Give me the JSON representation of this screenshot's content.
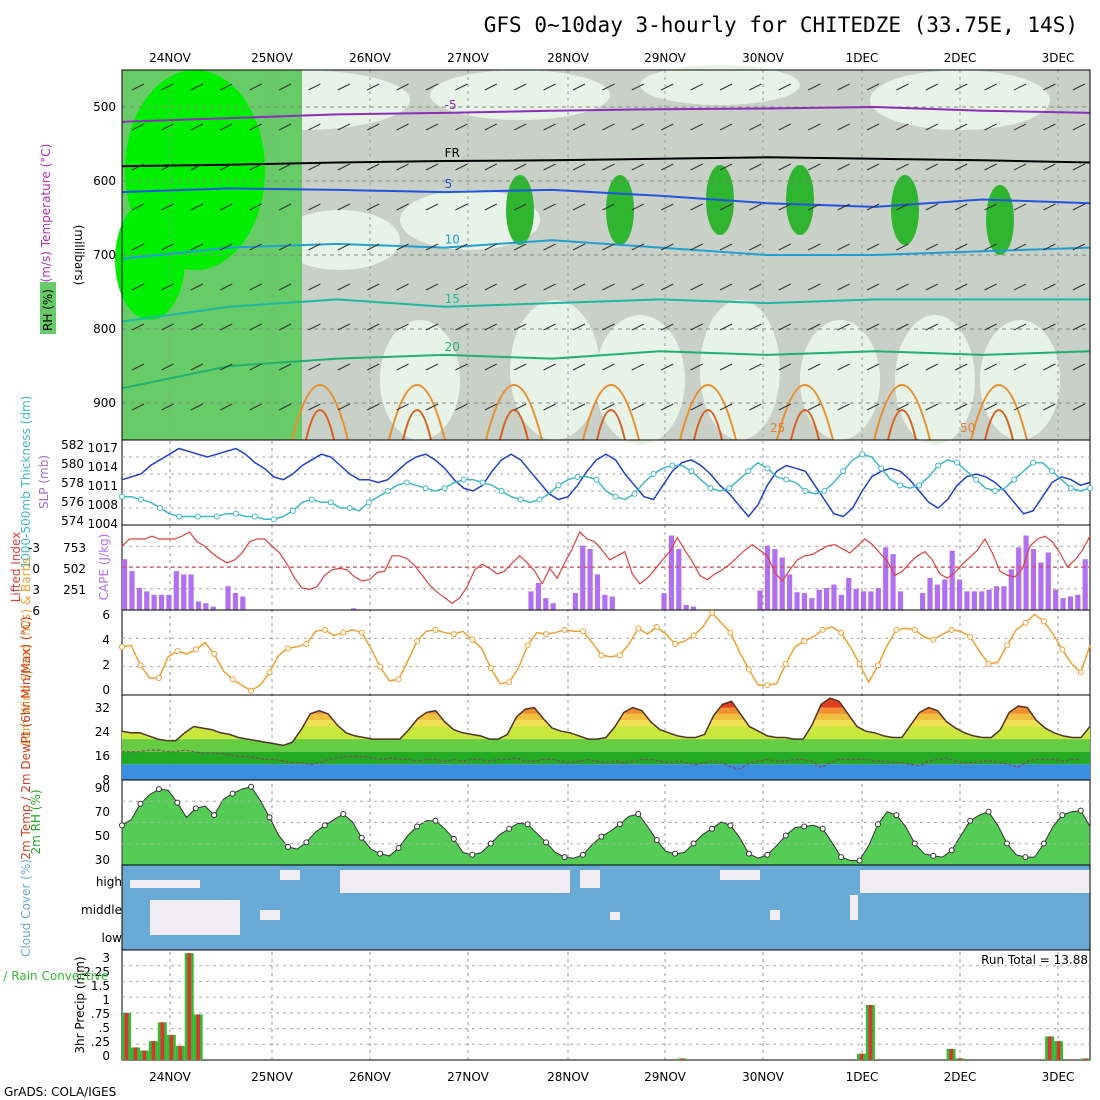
{
  "title": "GFS 0~10day 3-hourly for CHITEDZE (33.75E, 14S)",
  "footer": "GrADS: COLA/IGES",
  "colors": {
    "rh_dark": "#2fb52f",
    "rh_bright": "#00ee00",
    "rh_mid": "#67cc67",
    "rh_light": "#e6f3e6",
    "rh_grey": "#c8d0c8",
    "slp": "#1f3fcf",
    "thickness": "#3fb8c8",
    "li": "#e04040",
    "cape": "#b070f0",
    "wind_speed": "#f0a030",
    "temp_fill": "#e87020",
    "cloud": "#6aaad6",
    "cloud_bg": "#f0eef4",
    "precip_total": "#33bb33",
    "precip_conv": "#dd3333"
  },
  "chart_data": [
    {
      "type": "heatmap",
      "name": "upper-air",
      "date_labels": [
        "24NOV",
        "25NOV",
        "26NOV",
        "27NOV",
        "28NOV",
        "29NOV",
        "30NOV",
        "1DEC",
        "2DEC",
        "3DEC"
      ],
      "ylabel": "(millibars)",
      "side_labels": [
        "Wind (m/s)",
        "Temperature (°C)",
        "RH (%)"
      ],
      "ylim": [
        450,
        950
      ],
      "yticks": [
        500,
        600,
        700,
        800,
        900
      ],
      "temperature_contours": [
        {
          "label": "-5",
          "values": [
            520,
            515,
            510,
            508,
            505,
            503,
            502,
            500,
            505,
            508
          ],
          "color": "#8a2fb8"
        },
        {
          "label": "FR",
          "values": [
            580,
            578,
            575,
            573,
            572,
            570,
            568,
            570,
            572,
            575
          ],
          "color": "#000000"
        },
        {
          "label": "5",
          "values": [
            615,
            610,
            612,
            615,
            612,
            620,
            630,
            635,
            625,
            630
          ],
          "color": "#2255dd"
        },
        {
          "label": "10",
          "values": [
            705,
            690,
            685,
            690,
            680,
            690,
            700,
            700,
            695,
            690
          ],
          "color": "#22a0d0"
        },
        {
          "label": "15",
          "values": [
            790,
            770,
            760,
            770,
            765,
            760,
            765,
            760,
            760,
            760
          ],
          "color": "#22b8a0"
        },
        {
          "label": "20",
          "values": [
            880,
            850,
            840,
            835,
            840,
            830,
            835,
            830,
            835,
            830
          ],
          "color": "#22b070"
        }
      ],
      "contour_labels": [
        "-5",
        "FR",
        "5",
        "10",
        "15",
        "20",
        "25",
        "50"
      ]
    },
    {
      "type": "line",
      "name": "slp-thickness",
      "left_ylabel": "1000-500mb Thickness (dm)",
      "right_ylabel": "SLP (mb)",
      "left_ticks": [
        574,
        576,
        578,
        580,
        582
      ],
      "right_ticks": [
        1004,
        1008,
        1011,
        1014,
        1017
      ],
      "ylim": [
        1004,
        1019
      ],
      "series": [
        {
          "name": "SLP",
          "values": [
            1012,
            1012.5,
            1013,
            1014.5,
            1015.5,
            1016.5,
            1017.5,
            1017,
            1016.5,
            1016,
            1016.5,
            1017,
            1017.5,
            1016.5,
            1015,
            1014,
            1012.5,
            1012,
            1013,
            1014.5,
            1015.5,
            1016.5,
            1016,
            1014.5,
            1013,
            1012,
            1012,
            1011.5,
            1012,
            1013.5,
            1015,
            1016,
            1016.5,
            1015.5,
            1014,
            1012,
            1010.5,
            1010,
            1011,
            1013.5,
            1015.5,
            1016.5,
            1015.5,
            1013.5,
            1011.5,
            1009.5,
            1008.5,
            1009,
            1011,
            1013.5,
            1015.5,
            1016.5,
            1015.5,
            1013,
            1011,
            1009,
            1008.5,
            1011,
            1013.5,
            1015,
            1015.5,
            1014.5,
            1013,
            1011,
            1009.5,
            1007.5,
            1005.5,
            1007.5,
            1011,
            1013.5,
            1014.5,
            1014,
            1013.5,
            1011,
            1008.5,
            1006,
            1005.5,
            1007,
            1010,
            1012.5,
            1013.5,
            1014,
            1013.5,
            1012,
            1010,
            1008,
            1007,
            1008.5,
            1011,
            1012.5,
            1013,
            1012.5,
            1011.5,
            1010,
            1008,
            1006,
            1006.5,
            1009,
            1011.5,
            1012.5,
            1012,
            1011,
            1011.5
          ]
        },
        {
          "name": "Thickness",
          "values": [
            1009,
            1009,
            1008.5,
            1008,
            1007,
            1006,
            1005.5,
            1005.5,
            1005.5,
            1005.5,
            1005.5,
            1006,
            1006,
            1005.5,
            1005.5,
            1005,
            1005,
            1005.5,
            1006.5,
            1008,
            1008.5,
            1008,
            1008,
            1007,
            1007,
            1006.5,
            1008,
            1009,
            1010,
            1011,
            1011.5,
            1011,
            1010.5,
            1010,
            1010.5,
            1011.5,
            1012,
            1012,
            1011.5,
            1011,
            1010,
            1009,
            1008.5,
            1008,
            1008.5,
            1009.5,
            1011,
            1012,
            1012.5,
            1012.5,
            1012,
            1010,
            1009,
            1008.5,
            1009.5,
            1011.5,
            1013,
            1014,
            1014.5,
            1014.5,
            1013.5,
            1012,
            1010.5,
            1010,
            1010.5,
            1012,
            1013.5,
            1015,
            1014,
            1012.5,
            1012,
            1011.5,
            1010,
            1009.5,
            1010,
            1011.5,
            1013.5,
            1015.5,
            1016.5,
            1016,
            1014,
            1012,
            1011,
            1010.5,
            1011,
            1012.5,
            1014.5,
            1015.5,
            1015,
            1013.5,
            1012,
            1010.5,
            1010,
            1010.5,
            1012,
            1013.5,
            1015,
            1015,
            1013.5,
            1012,
            1010.5,
            1010,
            1010.5
          ]
        }
      ]
    },
    {
      "type": "bar",
      "name": "lifted-index-cape",
      "left_ylabel": "Lifted Index",
      "right_ylabel": "CAPE (J/kg)",
      "left_ticks": [
        "-3",
        "0",
        "3",
        "6"
      ],
      "right_ticks": [
        "753",
        "502",
        "251"
      ],
      "ylim": [
        0,
        1004
      ],
      "cape_values": [
        600,
        460,
        260,
        220,
        180,
        180,
        180,
        460,
        420,
        420,
        100,
        80,
        40,
        0,
        280,
        200,
        160,
        0,
        0,
        0,
        0,
        0,
        0,
        0,
        0,
        0,
        0,
        0,
        0,
        0,
        0,
        20,
        0,
        0,
        0,
        0,
        0,
        0,
        0,
        0,
        0,
        0,
        0,
        0,
        0,
        0,
        0,
        0,
        0,
        0,
        0,
        0,
        0,
        0,
        0,
        220,
        320,
        140,
        80,
        0,
        0,
        200,
        760,
        720,
        420,
        180,
        160,
        0,
        0,
        0,
        0,
        0,
        0,
        200,
        880,
        720,
        60,
        40,
        0,
        0,
        0,
        0,
        0,
        0,
        0,
        0,
        230,
        760,
        720,
        620,
        420,
        210,
        200,
        140,
        240,
        260,
        300,
        180,
        380,
        250,
        220,
        220,
        260,
        740,
        660,
        220,
        0,
        0,
        200,
        380,
        300,
        360,
        700,
        360,
        220,
        220,
        220,
        240,
        280,
        280,
        480,
        740,
        880,
        720,
        560,
        680,
        240,
        140,
        160,
        180,
        600
      ],
      "li_values": [
        -1.5,
        -2,
        -2,
        -2,
        -2.2,
        -2,
        -2,
        -2,
        -2.2,
        -2.5,
        -1.8,
        -1.5,
        -1,
        -0.6,
        -0.3,
        -0.5,
        -1,
        -1.8,
        -2,
        -2,
        -1.5,
        -1,
        -0.2,
        0.8,
        1.5,
        1.6,
        1.4,
        0.6,
        0.2,
        0.1,
        0.2,
        0.7,
        1,
        0.9,
        0.4,
        0.3,
        -0.8,
        -0.8,
        -0.6,
        -0.1,
        0.6,
        1.3,
        1.8,
        2.2,
        2.6,
        2.2,
        1.4,
        0.2,
        -0.2,
        0.1,
        0.5,
        0.3,
        -0.3,
        -0.8,
        -0.3,
        0.3,
        1.2,
        0.1,
        0.8,
        -0.3,
        -1.3,
        -2.5,
        -2,
        -1.8,
        -1.2,
        -0.5,
        -0.8,
        -1.1,
        0.5,
        1.2,
        0.8,
        0.2,
        -0.5,
        -1.1,
        -2.1,
        -1.2,
        -0.4,
        0.6,
        0.9,
        0.5,
        0.2,
        -0.2,
        -0.7,
        -1.2,
        -1.6,
        -1.2,
        -0.8,
        0.4,
        1,
        0.2,
        -0.5,
        -0.8,
        -0.9,
        -1.2,
        -1.5,
        -1.6,
        -1.3,
        -1,
        -1.5,
        -2,
        -1.6,
        -1,
        -0.4,
        0.6,
        0.3,
        -0.3,
        -0.8,
        -1.1,
        -0.5,
        0.5,
        0.8,
        0.4,
        -0.2,
        -0.7,
        -1.2,
        -2,
        -1,
        0.3,
        0.6,
        0.7,
        0.1,
        -1.5,
        -2,
        -2.2,
        -1.8,
        -1,
        0,
        -0.5,
        -1.2,
        -2.2
      ]
    },
    {
      "type": "line",
      "name": "wind-10m",
      "ylabel": "10m Wind Speed (m/s) & Barbs",
      "yticks": [
        "0",
        "2",
        "4",
        "6"
      ],
      "ylim": [
        0,
        6
      ],
      "values": [
        3.4,
        3.5,
        2.1,
        1.2,
        1.2,
        2.7,
        3.1,
        2.9,
        3.2,
        3.7,
        2.9,
        1.7,
        1.1,
        0.7,
        0.3,
        0.7,
        1.6,
        2.8,
        3.3,
        3.4,
        3.6,
        4.5,
        4.6,
        4.2,
        4.4,
        4.6,
        4.4,
        3.3,
        2,
        1,
        1.1,
        2.4,
        3.8,
        4.5,
        4.6,
        4.4,
        4.3,
        4.5,
        3.9,
        3.3,
        1.9,
        0.8,
        0.9,
        1.9,
        3.5,
        4.4,
        4.3,
        4.4,
        4.6,
        4.5,
        4.5,
        3.7,
        2.8,
        2.7,
        2.8,
        3.6,
        4.7,
        4.3,
        4.8,
        4.3,
        3.6,
        3.8,
        4.2,
        4.8,
        5.8,
        5.1,
        4.4,
        3,
        1.8,
        0.7,
        0.7,
        0.8,
        2.2,
        3.4,
        3.8,
        4.1,
        4.6,
        4.8,
        4.4,
        3.4,
        2.2,
        0.9,
        2.1,
        3.5,
        4.6,
        4.7,
        4.6,
        4.1,
        3.9,
        4.3,
        4.6,
        4.5,
        4.1,
        3.1,
        2.2,
        2.3,
        3.5,
        4.6,
        5.1,
        5.7,
        5.2,
        4.3,
        3.2,
        2.2,
        1.6,
        3.5
      ]
    },
    {
      "type": "area",
      "name": "temp-2m",
      "ylabel": "2m Temp / 2m DewPt (6hr Min/Max) (°C)",
      "yticks": [
        "32",
        "24",
        "16",
        "8"
      ],
      "ylim": [
        8,
        35
      ],
      "temp_values": [
        23.5,
        23,
        23,
        22,
        21,
        20.5,
        20.5,
        23,
        25,
        24.5,
        24,
        23,
        22.5,
        21.5,
        21,
        20.5,
        20,
        19.5,
        19,
        20,
        24,
        29,
        30,
        29,
        25.5,
        23,
        22,
        21.5,
        21,
        21,
        21,
        21,
        24,
        27.5,
        29.5,
        30,
        26.5,
        24,
        23,
        22.5,
        22,
        21,
        21,
        22.5,
        28,
        30.5,
        31,
        27.5,
        24.5,
        23.5,
        23,
        22,
        21,
        21,
        21.5,
        25,
        29.5,
        31,
        30,
        26.5,
        24,
        23,
        22,
        21.5,
        21.5,
        22.5,
        28.5,
        32,
        33,
        29,
        25,
        23.5,
        22,
        21.5,
        21.5,
        21,
        21,
        25.5,
        32,
        34,
        33,
        29,
        25,
        23.5,
        23,
        22,
        21.5,
        21.5,
        25.5,
        29.5,
        31,
        30,
        26.5,
        24.5,
        23,
        22,
        21.5,
        21.5,
        24,
        29.5,
        31.5,
        31,
        27,
        24.5,
        23,
        22,
        21.5,
        21.5,
        25
      ],
      "dew_values": [
        17,
        17,
        17,
        17.5,
        17.5,
        17,
        17,
        17.5,
        17,
        16.5,
        16.5,
        16.5,
        16,
        15.5,
        15.5,
        15,
        14.5,
        14.5,
        14,
        13.5,
        13.5,
        13,
        13.5,
        14.5,
        15,
        15.5,
        15.5,
        15.5,
        15,
        14.5,
        15,
        14.5,
        14.5,
        14,
        14.5,
        14.5,
        14,
        14.5,
        14,
        14.5,
        14.5,
        14,
        14.5,
        14.5,
        15,
        14,
        14,
        14.5,
        14.5,
        14,
        13.5,
        14,
        14.5,
        14,
        13.5,
        14,
        13.5,
        14,
        14.5,
        14.5,
        14,
        13.5,
        14,
        13.5,
        13,
        13.5,
        14,
        13.5,
        12,
        11.5,
        13.5,
        14,
        14.5,
        14,
        14,
        14.5,
        14.5,
        14,
        12,
        13.5,
        14.5,
        14.5,
        14.5,
        14.5,
        14,
        14,
        13.5,
        13.5,
        13,
        12.5,
        14,
        14.5,
        15,
        14,
        13.5,
        13.5,
        14,
        14,
        13.5,
        13,
        12,
        14,
        14.5,
        14.5,
        14.5,
        14,
        14.5,
        14.5
      ]
    },
    {
      "type": "area",
      "name": "rh-2m",
      "ylabel": "2m RH (%)",
      "yticks": [
        "90",
        "70",
        "50",
        "30"
      ],
      "ylim": [
        20,
        95
      ],
      "values": [
        55,
        60,
        74,
        82,
        87,
        86,
        75,
        62,
        70,
        72,
        64,
        78,
        83,
        87,
        89,
        77,
        62,
        46,
        36,
        34,
        40,
        49,
        55,
        60,
        65,
        58,
        44,
        34,
        30,
        28,
        35,
        46,
        54,
        59,
        59,
        52,
        43,
        31,
        29,
        31,
        39,
        47,
        52,
        57,
        56,
        48,
        40,
        31,
        27,
        26,
        29,
        38,
        45,
        50,
        56,
        63,
        65,
        54,
        42,
        32,
        30,
        31,
        39,
        47,
        52,
        58,
        55,
        44,
        30,
        26,
        29,
        37,
        46,
        53,
        54,
        55,
        52,
        40,
        27,
        24,
        24,
        37,
        56,
        67,
        64,
        54,
        39,
        30,
        28,
        27,
        33,
        46,
        59,
        64,
        67,
        55,
        39,
        29,
        27,
        27,
        39,
        54,
        64,
        67,
        68,
        54
      ]
    },
    {
      "type": "bar",
      "name": "cloud-cover",
      "ylabel": "Cloud Cover (%)",
      "row_labels": [
        "high",
        "middle",
        "low"
      ]
    },
    {
      "type": "bar",
      "name": "precipitation",
      "ylabel": "3hr Precip (mm)",
      "side_label": "Total / Rain Convective",
      "annotation": "Run Total = 13.88",
      "yticks": [
        "0",
        ".25",
        ".5",
        ".75",
        "1",
        "1.5",
        "2.25",
        "3"
      ],
      "ylim": [
        0,
        3.5
      ],
      "values": [
        1.5,
        0.4,
        0.3,
        0.6,
        1.2,
        0.8,
        0.45,
        3.4,
        1.45,
        0,
        0,
        0,
        0,
        0,
        0,
        0,
        0,
        0,
        0,
        0,
        0,
        0,
        0,
        0,
        0,
        0,
        0,
        0,
        0,
        0,
        0,
        0,
        0,
        0,
        0,
        0,
        0,
        0,
        0,
        0,
        0,
        0,
        0,
        0,
        0,
        0,
        0,
        0,
        0,
        0,
        0,
        0,
        0,
        0,
        0,
        0,
        0,
        0,
        0,
        0,
        0,
        0,
        0.05,
        0,
        0,
        0,
        0,
        0,
        0,
        0,
        0,
        0,
        0,
        0,
        0,
        0,
        0,
        0,
        0,
        0,
        0,
        0,
        0.2,
        1.75,
        0,
        0,
        0,
        0,
        0,
        0,
        0,
        0,
        0.35,
        0.05,
        0,
        0,
        0,
        0,
        0,
        0,
        0,
        0,
        0,
        0.75,
        0.6,
        0,
        0,
        0.05
      ]
    }
  ]
}
